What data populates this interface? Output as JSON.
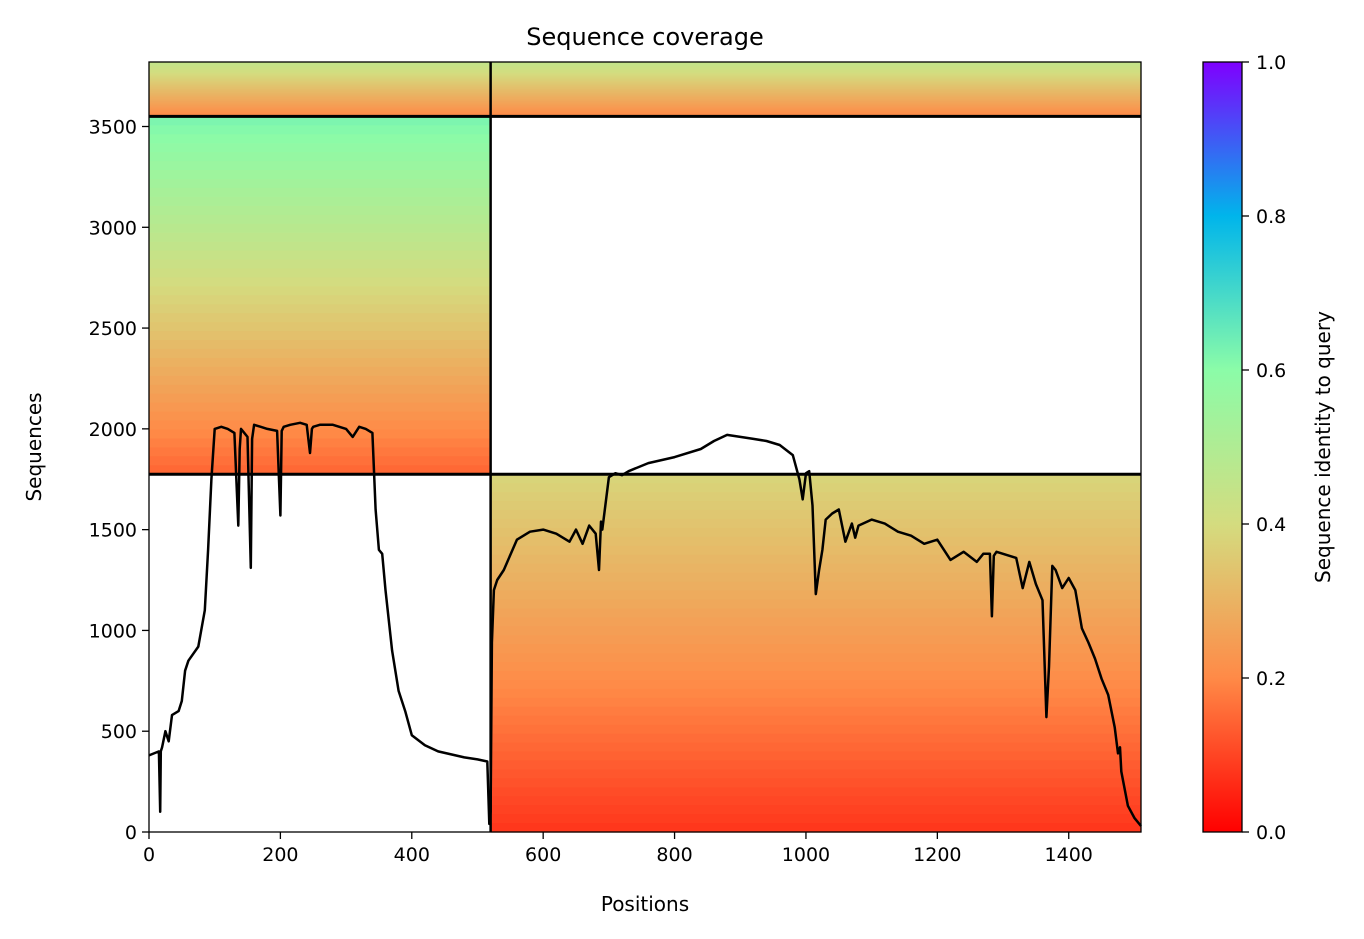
{
  "chart_data": {
    "type": "heatmap",
    "title": "Sequence coverage",
    "xlabel": "Positions",
    "ylabel": "Sequences",
    "xlim": [
      0,
      1510
    ],
    "ylim": [
      0,
      3820
    ],
    "x_ticks": [
      0,
      200,
      400,
      600,
      800,
      1000,
      1200,
      1400
    ],
    "x_tick_labels": [
      "0",
      "200",
      "400",
      "600",
      "800",
      "1000",
      "1200",
      "1400"
    ],
    "y_ticks": [
      0,
      500,
      1000,
      1500,
      2000,
      2500,
      3000,
      3500
    ],
    "y_tick_labels": [
      "0",
      "500",
      "1000",
      "1500",
      "2000",
      "2500",
      "3000",
      "3500"
    ],
    "colorbar": {
      "label": "Sequence identity to query",
      "range": [
        0.0,
        1.0
      ],
      "ticks": [
        0.0,
        0.2,
        0.4,
        0.6,
        0.8,
        1.0
      ],
      "tick_labels": [
        "0.0",
        "0.2",
        "0.4",
        "0.6",
        "0.8",
        "1.0"
      ],
      "colormap": "rainbow_r",
      "color_stops": [
        "#ff0000",
        "#ff8a47",
        "#d4dc7f",
        "#8bfca8",
        "#00b5eb",
        "#7f00ff"
      ]
    },
    "divisions": {
      "x_boundary": 520,
      "y_boundaries": [
        1775,
        3550
      ]
    },
    "blocks": [
      {
        "name": "left-top",
        "x": [
          0,
          520
        ],
        "y": [
          3550,
          3820
        ],
        "identity_low": 0.2,
        "identity_high": 0.45
      },
      {
        "name": "left-middle",
        "x": [
          0,
          520
        ],
        "y": [
          1775,
          3550
        ],
        "identity_low": 0.15,
        "identity_high": 0.62
      },
      {
        "name": "right-top",
        "x": [
          520,
          1510
        ],
        "y": [
          3550,
          3820
        ],
        "identity_low": 0.2,
        "identity_high": 0.45
      },
      {
        "name": "right-bottom",
        "x": [
          520,
          1510
        ],
        "y": [
          0,
          1775
        ],
        "identity_low": 0.08,
        "identity_high": 0.38
      }
    ],
    "series": [
      {
        "x": [
          0,
          15,
          17,
          18,
          20,
          25,
          30,
          35,
          45,
          50,
          55,
          60,
          75,
          85,
          90,
          95,
          100,
          110,
          120,
          130,
          136,
          138,
          140,
          145,
          150,
          155,
          157,
          160,
          170,
          180,
          195,
          200,
          202,
          205,
          215,
          230,
          240,
          245,
          248,
          250,
          260,
          280,
          300,
          310,
          320,
          330,
          340,
          345,
          350,
          355,
          360,
          370,
          380,
          390,
          400,
          420,
          440,
          460,
          480,
          500,
          515,
          518,
          520,
          522,
          525,
          530,
          540,
          560,
          580,
          600,
          620,
          640,
          650,
          660,
          670,
          680,
          685,
          688,
          690,
          700,
          710,
          720,
          730,
          760,
          800,
          840,
          860,
          880,
          900,
          920,
          940,
          960,
          980,
          990,
          995,
          1000,
          1005,
          1010,
          1015,
          1020,
          1025,
          1030,
          1040,
          1050,
          1060,
          1070,
          1075,
          1080,
          1100,
          1120,
          1140,
          1160,
          1180,
          1200,
          1220,
          1240,
          1260,
          1270,
          1280,
          1283,
          1286,
          1290,
          1300,
          1320,
          1330,
          1340,
          1350,
          1360,
          1366,
          1370,
          1375,
          1380,
          1390,
          1400,
          1410,
          1420,
          1430,
          1440,
          1450,
          1460,
          1470,
          1475,
          1478,
          1480,
          1490,
          1500,
          1510
        ],
        "y": [
          380,
          400,
          100,
          400,
          420,
          500,
          450,
          580,
          600,
          650,
          800,
          850,
          920,
          1100,
          1400,
          1750,
          2000,
          2010,
          2000,
          1980,
          1520,
          1900,
          2000,
          1980,
          1960,
          1310,
          1950,
          2020,
          2010,
          2000,
          1990,
          1570,
          1990,
          2010,
          2020,
          2030,
          2020,
          1880,
          2000,
          2010,
          2020,
          2020,
          2000,
          1960,
          2010,
          2000,
          1980,
          1600,
          1400,
          1380,
          1200,
          900,
          700,
          600,
          480,
          430,
          400,
          385,
          370,
          360,
          350,
          40,
          100,
          940,
          1200,
          1250,
          1300,
          1450,
          1490,
          1500,
          1480,
          1440,
          1500,
          1430,
          1520,
          1480,
          1300,
          1540,
          1500,
          1760,
          1780,
          1770,
          1790,
          1830,
          1860,
          1900,
          1940,
          1970,
          1960,
          1950,
          1940,
          1920,
          1870,
          1750,
          1650,
          1780,
          1790,
          1620,
          1180,
          1300,
          1400,
          1550,
          1580,
          1600,
          1440,
          1530,
          1460,
          1520,
          1550,
          1530,
          1490,
          1470,
          1430,
          1450,
          1350,
          1390,
          1340,
          1380,
          1380,
          1070,
          1370,
          1390,
          1380,
          1360,
          1210,
          1340,
          1230,
          1150,
          570,
          820,
          1320,
          1300,
          1210,
          1260,
          1200,
          1010,
          940,
          860,
          760,
          680,
          520,
          390,
          420,
          300,
          130,
          70,
          30
        ]
      }
    ]
  }
}
